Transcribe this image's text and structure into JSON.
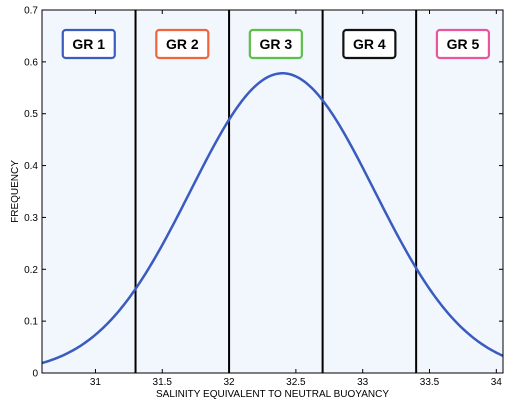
{
  "chart_data": {
    "type": "line",
    "title": "",
    "xlabel": "SALINITY EQUIVALENT TO NEUTRAL BUOYANCY",
    "ylabel": "FREQUENCY",
    "xlim": [
      30.6,
      34.05
    ],
    "ylim": [
      0,
      0.7
    ],
    "x_ticks": [
      31,
      31.5,
      32,
      32.5,
      33,
      33.5,
      34
    ],
    "y_ticks": [
      0,
      0.1,
      0.2,
      0.3,
      0.4,
      0.5,
      0.6,
      0.7
    ],
    "grid": false,
    "curve": {
      "kind": "normal-density",
      "mean": 32.4,
      "sd": 0.69,
      "peak": 0.578,
      "color": "#3a5bbf"
    },
    "boundaries": [
      31.3,
      32.0,
      32.7,
      33.4
    ],
    "groups": [
      {
        "label": "GR 1",
        "x": 30.95,
        "border_color": "#3a5bbf"
      },
      {
        "label": "GR 2",
        "x": 31.65,
        "border_color": "#f0643c"
      },
      {
        "label": "GR 3",
        "x": 32.35,
        "border_color": "#5bbf4a"
      },
      {
        "label": "GR 4",
        "x": 33.05,
        "border_color": "#111111"
      },
      {
        "label": "GR 5",
        "x": 33.75,
        "border_color": "#e8559a"
      }
    ],
    "background": "#f2f6fd"
  }
}
